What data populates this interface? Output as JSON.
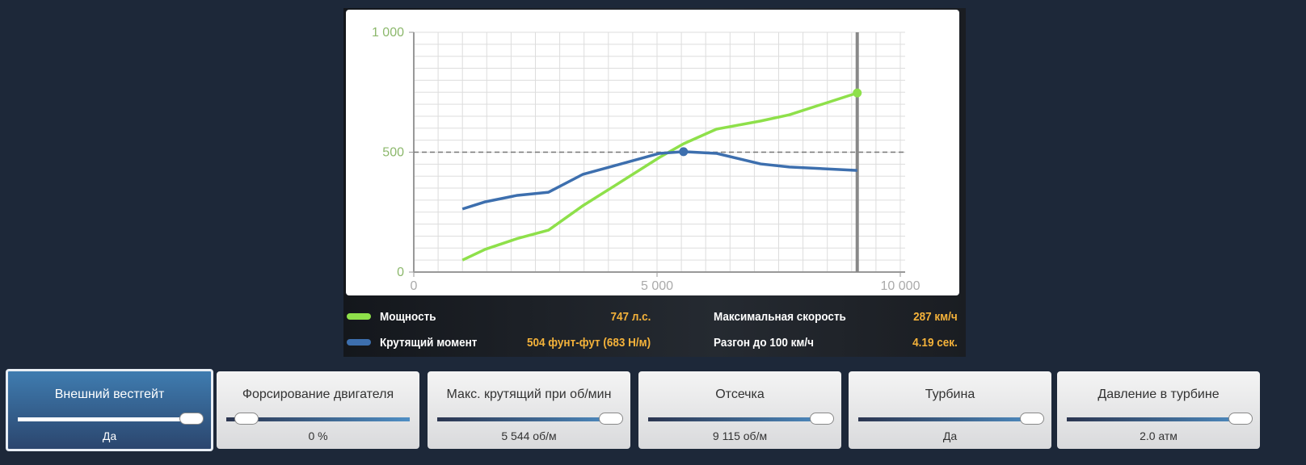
{
  "chart_data": {
    "type": "line",
    "x": [
      1000,
      1470,
      2130,
      2770,
      3470,
      4130,
      5050,
      5544,
      6220,
      7130,
      7720,
      9115
    ],
    "series": [
      {
        "name": "Мощность",
        "color": "#8ee04a",
        "values": [
          50,
          95,
          140,
          175,
          276,
          360,
          478,
          535,
          596,
          630,
          656,
          747
        ]
      },
      {
        "name": "Крутящий момент",
        "color": "#3d6fae",
        "values": [
          263,
          293,
          320,
          333,
          407,
          444,
          495,
          502,
          495,
          451,
          438,
          424
        ]
      }
    ],
    "xlim": [
      0,
      10000
    ],
    "ylim": [
      0,
      1000
    ],
    "xticks": [
      0,
      {
        "value": 5000,
        "label": "5 000"
      },
      {
        "value": 10000,
        "label": "10 000"
      }
    ],
    "yticks": [
      0,
      500,
      {
        "value": 1000,
        "label": "1 000"
      }
    ],
    "grid": {
      "x_step": 500,
      "y_step": 50
    },
    "ref_y": 500,
    "cutoff_x": 9115
  },
  "legend_values": [
    "747 л.с.",
    "504 фунт-фут (683 Н/м)"
  ],
  "stats": [
    {
      "label": "Максимальная скорость",
      "value": "287 км/ч"
    },
    {
      "label": "Разгон до 100 км/ч",
      "value": "4.19 сек."
    }
  ],
  "cards": [
    {
      "title": "Внешний вестгейт",
      "value": "Да"
    },
    {
      "title": "Форсирование двигателя",
      "value": "0 %"
    },
    {
      "title": "Макс. крутящий при об/мин",
      "value": "5 544 об/м"
    },
    {
      "title": "Отсечка",
      "value": "9 115 об/м"
    },
    {
      "title": "Турбина",
      "value": "Да"
    },
    {
      "title": "Давление в турбине",
      "value": "2.0 атм"
    }
  ]
}
